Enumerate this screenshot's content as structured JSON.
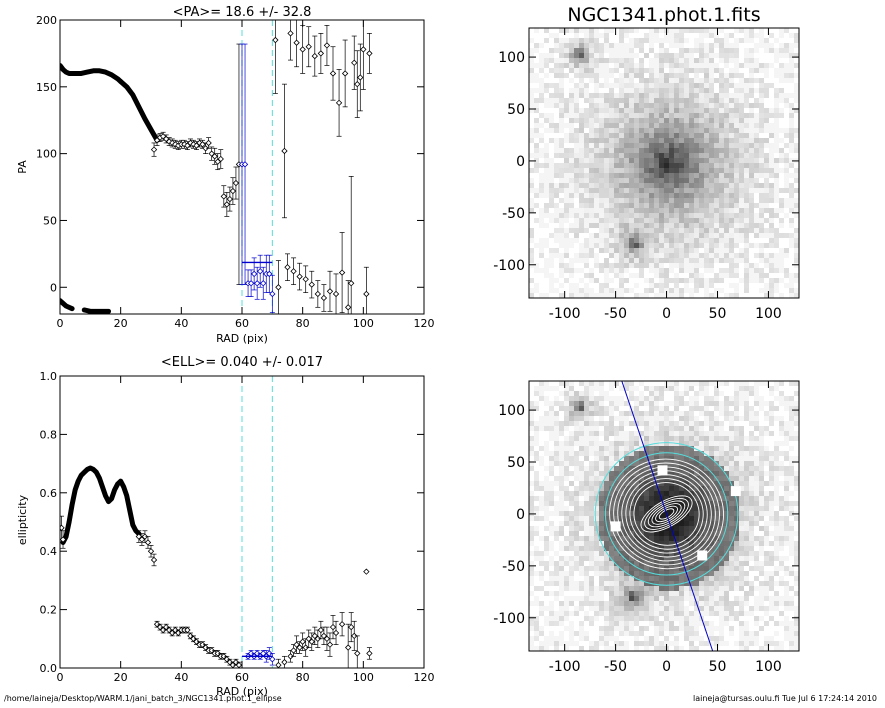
{
  "footer": {
    "left": "/home/laineja/Desktop/WARM.1/jani_batch_3/NGC1341.phot.1_ellipse",
    "right": "laineja@tursas.oulu.fi  Tue Jul  6 17:24:14 2010"
  },
  "colors": {
    "axis": "#000000",
    "points": "#000000",
    "fit_line": "#0000cc",
    "window": "#55dddd",
    "iso": "#ffffff"
  },
  "chart_data": [
    {
      "type": "scatter",
      "title": "<PA>=  18.6 +/-  32.8",
      "xlabel": "RAD (pix)",
      "ylabel": "PA",
      "xlim": [
        0,
        120
      ],
      "ylim": [
        -20,
        200
      ],
      "xticks": [
        0,
        20,
        40,
        60,
        80,
        100,
        120
      ],
      "yticks": [
        0,
        50,
        100,
        150,
        200
      ],
      "window": [
        60,
        70
      ],
      "mean_line": {
        "x": [
          60,
          70
        ],
        "y": 18.6
      },
      "curve_segments": [
        {
          "x": [
            0,
            1,
            2,
            3,
            5,
            7,
            9,
            11,
            13,
            15,
            17,
            19,
            20
          ],
          "y": [
            166,
            163,
            161,
            160,
            160,
            160,
            161,
            162,
            162,
            161,
            159,
            156,
            154
          ]
        },
        {
          "x": [
            20,
            22,
            24,
            26,
            28,
            30,
            32
          ],
          "y": [
            154,
            150,
            144,
            135,
            126,
            118,
            110
          ]
        },
        {
          "x": [
            0,
            2,
            4
          ],
          "y": [
            -10,
            -14,
            -16
          ]
        },
        {
          "x": [
            8,
            10,
            12,
            14,
            16
          ],
          "y": [
            -17,
            -18,
            -18,
            -18,
            -18
          ]
        }
      ],
      "points": [
        {
          "x": 31,
          "y": 103,
          "e": 5
        },
        {
          "x": 32,
          "y": 110,
          "e": 4
        },
        {
          "x": 33,
          "y": 112,
          "e": 3
        },
        {
          "x": 34,
          "y": 113,
          "e": 3
        },
        {
          "x": 35,
          "y": 111,
          "e": 3
        },
        {
          "x": 36,
          "y": 109,
          "e": 3
        },
        {
          "x": 37,
          "y": 108,
          "e": 3
        },
        {
          "x": 38,
          "y": 107,
          "e": 3
        },
        {
          "x": 39,
          "y": 106,
          "e": 3
        },
        {
          "x": 40,
          "y": 107,
          "e": 3
        },
        {
          "x": 41,
          "y": 107,
          "e": 3
        },
        {
          "x": 42,
          "y": 106,
          "e": 3
        },
        {
          "x": 43,
          "y": 108,
          "e": 3
        },
        {
          "x": 44,
          "y": 107,
          "e": 3
        },
        {
          "x": 45,
          "y": 106,
          "e": 3
        },
        {
          "x": 46,
          "y": 108,
          "e": 3
        },
        {
          "x": 47,
          "y": 107,
          "e": 3
        },
        {
          "x": 48,
          "y": 104,
          "e": 4
        },
        {
          "x": 49,
          "y": 108,
          "e": 4
        },
        {
          "x": 50,
          "y": 100,
          "e": 5
        },
        {
          "x": 51,
          "y": 98,
          "e": 6
        },
        {
          "x": 52,
          "y": 94,
          "e": 6
        },
        {
          "x": 53,
          "y": 96,
          "e": 7
        },
        {
          "x": 54,
          "y": 68,
          "e": 8
        },
        {
          "x": 55,
          "y": 62,
          "e": 9
        },
        {
          "x": 56,
          "y": 66,
          "e": 9
        },
        {
          "x": 57,
          "y": 72,
          "e": 10
        },
        {
          "x": 58,
          "y": 78,
          "e": 12
        },
        {
          "x": 59,
          "y": 92,
          "e": 90
        },
        {
          "x": 60,
          "y": 92,
          "e": 90
        },
        {
          "x": 61,
          "y": 92,
          "e": 90
        },
        {
          "x": 62,
          "y": 3,
          "e": 10
        },
        {
          "x": 63,
          "y": 3,
          "e": 10
        },
        {
          "x": 64,
          "y": 10,
          "e": 12
        },
        {
          "x": 65,
          "y": 3,
          "e": 12
        },
        {
          "x": 66,
          "y": 12,
          "e": 12
        },
        {
          "x": 67,
          "y": 3,
          "e": 12
        },
        {
          "x": 68,
          "y": 10,
          "e": 14
        },
        {
          "x": 69,
          "y": 10,
          "e": 14
        },
        {
          "x": 70,
          "y": -5,
          "e": 14
        },
        {
          "x": 71,
          "y": 185,
          "e": 40
        },
        {
          "x": 72,
          "y": 0,
          "e": 20
        },
        {
          "x": 74,
          "y": 102,
          "e": 50
        },
        {
          "x": 75,
          "y": 15,
          "e": 10
        },
        {
          "x": 76,
          "y": 190,
          "e": 20
        },
        {
          "x": 77,
          "y": 12,
          "e": 10
        },
        {
          "x": 78,
          "y": 183,
          "e": 18
        },
        {
          "x": 79,
          "y": 8,
          "e": 10
        },
        {
          "x": 80,
          "y": 178,
          "e": 18
        },
        {
          "x": 81,
          "y": 6,
          "e": 10
        },
        {
          "x": 82,
          "y": 180,
          "e": 15
        },
        {
          "x": 83,
          "y": 2,
          "e": 10
        },
        {
          "x": 84,
          "y": 173,
          "e": 15
        },
        {
          "x": 85,
          "y": -5,
          "e": 10
        },
        {
          "x": 86,
          "y": 175,
          "e": 15
        },
        {
          "x": 87,
          "y": -8,
          "e": 10
        },
        {
          "x": 88,
          "y": 181,
          "e": 15
        },
        {
          "x": 89,
          "y": -3,
          "e": 15
        },
        {
          "x": 90,
          "y": 160,
          "e": 20
        },
        {
          "x": 91,
          "y": -5,
          "e": 15
        },
        {
          "x": 92,
          "y": 138,
          "e": 25
        },
        {
          "x": 93,
          "y": 11,
          "e": 30
        },
        {
          "x": 94,
          "y": 160,
          "e": 25
        },
        {
          "x": 95,
          "y": -15,
          "e": 20
        },
        {
          "x": 96,
          "y": 3,
          "e": 80
        },
        {
          "x": 97,
          "y": 168,
          "e": 20
        },
        {
          "x": 98,
          "y": 152,
          "e": 25
        },
        {
          "x": 99,
          "y": 157,
          "e": 25
        },
        {
          "x": 100,
          "y": 178,
          "e": 30
        },
        {
          "x": 101,
          "y": -5,
          "e": 20
        },
        {
          "x": 102,
          "y": 175,
          "e": 15
        }
      ]
    },
    {
      "type": "scatter",
      "title": "<ELL>= 0.040 +/-  0.017",
      "xlabel": "RAD (pix)",
      "ylabel": "ellipticity",
      "xlim": [
        0,
        120
      ],
      "ylim": [
        0,
        1.0
      ],
      "xticks": [
        0,
        20,
        40,
        60,
        80,
        100,
        120
      ],
      "yticks": [
        0.0,
        0.2,
        0.4,
        0.6,
        0.8,
        1.0
      ],
      "window": [
        60,
        70
      ],
      "mean_line": {
        "x": [
          60,
          70
        ],
        "y": 0.04
      },
      "curve_segments": [
        {
          "x": [
            1,
            2,
            3,
            4,
            5,
            6,
            7,
            8,
            9,
            10,
            11,
            12,
            13,
            14,
            15,
            16,
            17,
            18,
            19,
            20,
            21,
            22,
            23,
            24,
            25,
            26
          ],
          "y": [
            0.43,
            0.45,
            0.5,
            0.56,
            0.61,
            0.64,
            0.66,
            0.67,
            0.68,
            0.685,
            0.68,
            0.67,
            0.65,
            0.62,
            0.59,
            0.57,
            0.58,
            0.61,
            0.63,
            0.64,
            0.62,
            0.59,
            0.54,
            0.49,
            0.47,
            0.46
          ]
        }
      ],
      "points": [
        {
          "x": 0.5,
          "y": 0.48,
          "e": 0.04
        },
        {
          "x": 1,
          "y": 0.44,
          "e": 0.03
        },
        {
          "x": 26,
          "y": 0.45,
          "e": 0.02
        },
        {
          "x": 27,
          "y": 0.44,
          "e": 0.02
        },
        {
          "x": 28,
          "y": 0.45,
          "e": 0.02
        },
        {
          "x": 29,
          "y": 0.43,
          "e": 0.02
        },
        {
          "x": 30,
          "y": 0.4,
          "e": 0.02
        },
        {
          "x": 31,
          "y": 0.37,
          "e": 0.02
        },
        {
          "x": 32,
          "y": 0.15,
          "e": 0.01
        },
        {
          "x": 33,
          "y": 0.14,
          "e": 0.01
        },
        {
          "x": 34,
          "y": 0.13,
          "e": 0.01
        },
        {
          "x": 35,
          "y": 0.14,
          "e": 0.01
        },
        {
          "x": 36,
          "y": 0.13,
          "e": 0.01
        },
        {
          "x": 37,
          "y": 0.12,
          "e": 0.01
        },
        {
          "x": 38,
          "y": 0.13,
          "e": 0.01
        },
        {
          "x": 39,
          "y": 0.12,
          "e": 0.01
        },
        {
          "x": 40,
          "y": 0.13,
          "e": 0.01
        },
        {
          "x": 41,
          "y": 0.13,
          "e": 0.01
        },
        {
          "x": 42,
          "y": 0.13,
          "e": 0.01
        },
        {
          "x": 43,
          "y": 0.11,
          "e": 0.01
        },
        {
          "x": 44,
          "y": 0.1,
          "e": 0.01
        },
        {
          "x": 45,
          "y": 0.09,
          "e": 0.01
        },
        {
          "x": 46,
          "y": 0.08,
          "e": 0.01
        },
        {
          "x": 47,
          "y": 0.08,
          "e": 0.01
        },
        {
          "x": 48,
          "y": 0.07,
          "e": 0.01
        },
        {
          "x": 49,
          "y": 0.06,
          "e": 0.01
        },
        {
          "x": 50,
          "y": 0.06,
          "e": 0.01
        },
        {
          "x": 51,
          "y": 0.05,
          "e": 0.01
        },
        {
          "x": 52,
          "y": 0.05,
          "e": 0.01
        },
        {
          "x": 53,
          "y": 0.04,
          "e": 0.01
        },
        {
          "x": 54,
          "y": 0.04,
          "e": 0.01
        },
        {
          "x": 55,
          "y": 0.03,
          "e": 0.01
        },
        {
          "x": 56,
          "y": 0.02,
          "e": 0.01
        },
        {
          "x": 57,
          "y": 0.01,
          "e": 0.01
        },
        {
          "x": 58,
          "y": 0.02,
          "e": 0.01
        },
        {
          "x": 59,
          "y": 0.01,
          "e": 0.01
        },
        {
          "x": 62,
          "y": 0.04,
          "e": 0.01
        },
        {
          "x": 63,
          "y": 0.05,
          "e": 0.01
        },
        {
          "x": 64,
          "y": 0.04,
          "e": 0.01
        },
        {
          "x": 65,
          "y": 0.05,
          "e": 0.01
        },
        {
          "x": 66,
          "y": 0.04,
          "e": 0.01
        },
        {
          "x": 67,
          "y": 0.05,
          "e": 0.01
        },
        {
          "x": 68,
          "y": 0.04,
          "e": 0.02
        },
        {
          "x": 69,
          "y": 0.05,
          "e": 0.02
        },
        {
          "x": 70,
          "y": 0.03,
          "e": 0.02
        },
        {
          "x": 72,
          "y": 0.01,
          "e": 0.02
        },
        {
          "x": 74,
          "y": 0.02,
          "e": 0.02
        },
        {
          "x": 76,
          "y": 0.04,
          "e": 0.02
        },
        {
          "x": 77,
          "y": 0.06,
          "e": 0.02
        },
        {
          "x": 78,
          "y": 0.08,
          "e": 0.03
        },
        {
          "x": 79,
          "y": 0.07,
          "e": 0.02
        },
        {
          "x": 80,
          "y": 0.09,
          "e": 0.03
        },
        {
          "x": 81,
          "y": 0.07,
          "e": 0.03
        },
        {
          "x": 82,
          "y": 0.1,
          "e": 0.03
        },
        {
          "x": 83,
          "y": 0.09,
          "e": 0.03
        },
        {
          "x": 84,
          "y": 0.11,
          "e": 0.03
        },
        {
          "x": 85,
          "y": 0.1,
          "e": 0.03
        },
        {
          "x": 86,
          "y": 0.13,
          "e": 0.03
        },
        {
          "x": 87,
          "y": 0.11,
          "e": 0.03
        },
        {
          "x": 88,
          "y": 0.1,
          "e": 0.04
        },
        {
          "x": 89,
          "y": 0.08,
          "e": 0.04
        },
        {
          "x": 90,
          "y": 0.14,
          "e": 0.04
        },
        {
          "x": 91,
          "y": 0.12,
          "e": 0.04
        },
        {
          "x": 93,
          "y": 0.15,
          "e": 0.04
        },
        {
          "x": 95,
          "y": 0.07,
          "e": 0.08
        },
        {
          "x": 96,
          "y": 0.14,
          "e": 0.05
        },
        {
          "x": 97,
          "y": 0.11,
          "e": 0.05
        },
        {
          "x": 98,
          "y": 0.05,
          "e": 0.06
        },
        {
          "x": 101,
          "y": 0.33,
          "e": 0.0
        },
        {
          "x": 102,
          "y": 0.05,
          "e": 0.02
        }
      ]
    },
    {
      "type": "heatmap",
      "title": "NGC1341.phot.1.fits",
      "xlim": [
        -135,
        130
      ],
      "ylim": [
        -132,
        128
      ],
      "xticks": [
        -100,
        -50,
        0,
        50,
        100
      ],
      "yticks": [
        -100,
        -50,
        0,
        50,
        100
      ],
      "sources": [
        {
          "x": 0,
          "y": 0,
          "r": 70
        },
        {
          "x": -88,
          "y": 105,
          "r": 12
        },
        {
          "x": -35,
          "y": -78,
          "r": 12
        }
      ]
    },
    {
      "type": "heatmap",
      "xlim": [
        -135,
        130
      ],
      "ylim": [
        -132,
        128
      ],
      "xticks": [
        -100,
        -50,
        0,
        50,
        100
      ],
      "yticks": [
        -100,
        -50,
        0,
        50,
        100
      ],
      "window_radii": [
        60,
        70
      ],
      "pa_line_deg": 18.6
    }
  ]
}
